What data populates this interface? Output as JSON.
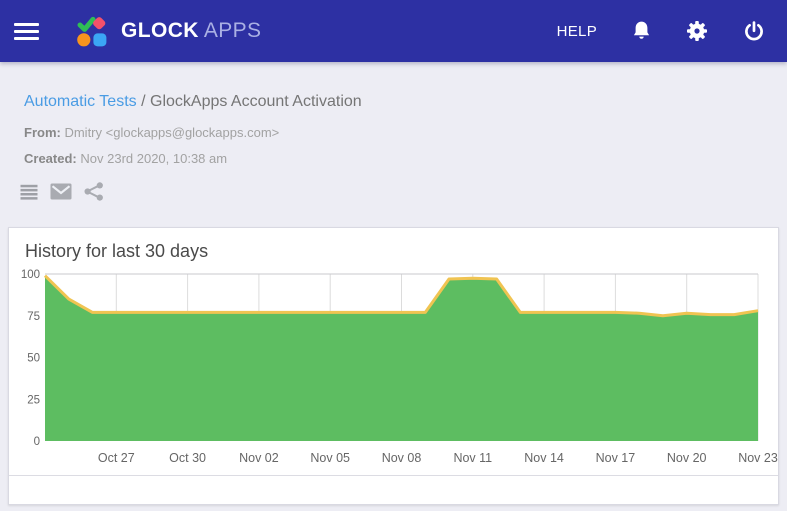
{
  "navbar": {
    "background_color": "#2d30a3",
    "brand": {
      "primary": "GLOCK",
      "secondary": "APPS",
      "mark_colors": {
        "check": "#2fbe56",
        "diamond": "#f3516b",
        "circle": "#f7941e",
        "square": "#3ba6f5"
      }
    },
    "help_label": "HELP"
  },
  "breadcrumb": {
    "link": "Automatic Tests",
    "separator": "/",
    "current": "GlockApps Account Activation",
    "link_color": "#4a9ce4"
  },
  "meta": {
    "from_label": "From:",
    "from_value": "Dmitry <glockapps@glockapps.com>",
    "created_label": "Created:",
    "created_value": "Nov 23rd 2020, 10:38 am"
  },
  "toolbar": {
    "icons": [
      "list-icon",
      "mail-icon",
      "share-icon"
    ]
  },
  "chart_data": {
    "type": "area",
    "title": "History for last 30 days",
    "x": [
      "Oct 24",
      "Oct 25",
      "Oct 26",
      "Oct 27",
      "Oct 28",
      "Oct 29",
      "Oct 30",
      "Oct 31",
      "Nov 01",
      "Nov 02",
      "Nov 03",
      "Nov 04",
      "Nov 05",
      "Nov 06",
      "Nov 07",
      "Nov 08",
      "Nov 09",
      "Nov 10",
      "Nov 11",
      "Nov 12",
      "Nov 13",
      "Nov 14",
      "Nov 15",
      "Nov 16",
      "Nov 17",
      "Nov 18",
      "Nov 19",
      "Nov 20",
      "Nov 21",
      "Nov 22",
      "Nov 23"
    ],
    "values": [
      99,
      85,
      77,
      77,
      77,
      77,
      77,
      77,
      77,
      77,
      77,
      77,
      77,
      77,
      77,
      77,
      77,
      97,
      97.5,
      97,
      77,
      77,
      77,
      77,
      77,
      76.5,
      75,
      76.5,
      75.7,
      75.7,
      78
    ],
    "tick_indices": [
      3,
      6,
      9,
      12,
      15,
      18,
      21,
      24,
      27,
      30
    ],
    "tick_labels": [
      "Oct 27",
      "Oct 30",
      "Nov 02",
      "Nov 05",
      "Nov 08",
      "Nov 11",
      "Nov 14",
      "Nov 17",
      "Nov 20",
      "Nov 23"
    ],
    "y_ticks": [
      100,
      75,
      50,
      25,
      0
    ],
    "ylim": [
      0,
      100
    ],
    "xlabel": "",
    "ylabel": "",
    "grid": "vertical",
    "legend": "none",
    "area_color": "#5dbd61",
    "line_color": "#f0c452",
    "grid_color": "#dcdcdc",
    "axis_text_color": "#666666"
  }
}
